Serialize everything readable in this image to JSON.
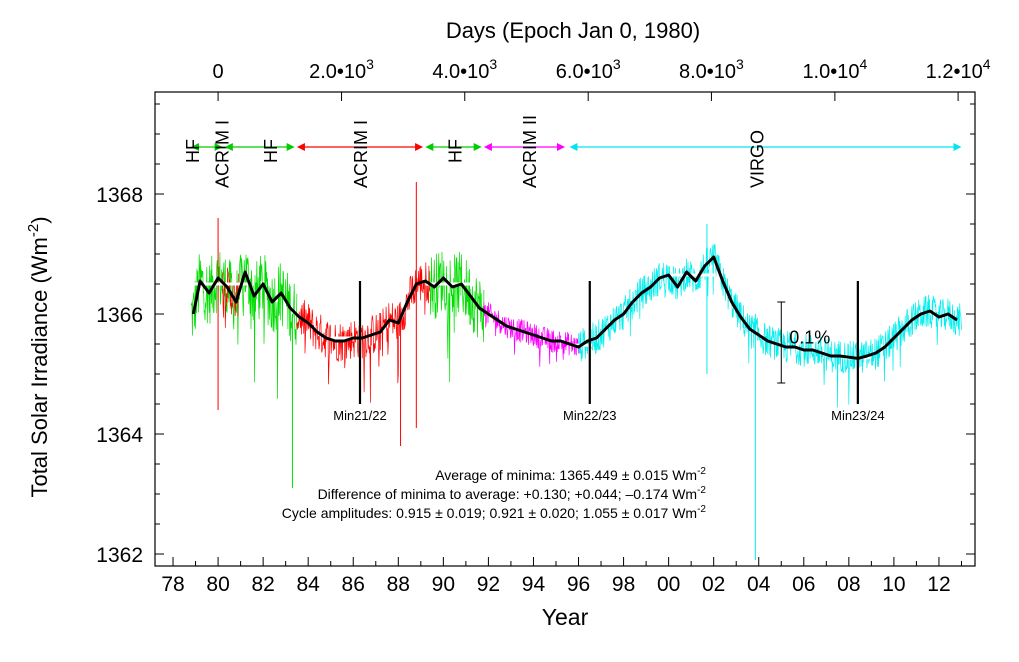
{
  "chart_data": {
    "type": "line",
    "xlabel": "Year",
    "ylabel": "Total Solar Irradiance (Wm",
    "ylabel_sup": "-2",
    "ylabel_close": ")",
    "top_axis_label": "Days (Epoch Jan 0, 1980)",
    "xlim": [
      1977.2,
      2013.6
    ],
    "ylim": [
      1361.8,
      1369.7
    ],
    "x_ticks": [
      {
        "year": 1978,
        "label": "78"
      },
      {
        "year": 1980,
        "label": "80"
      },
      {
        "year": 1982,
        "label": "82"
      },
      {
        "year": 1984,
        "label": "84"
      },
      {
        "year": 1986,
        "label": "86"
      },
      {
        "year": 1988,
        "label": "88"
      },
      {
        "year": 1990,
        "label": "90"
      },
      {
        "year": 1992,
        "label": "92"
      },
      {
        "year": 1994,
        "label": "94"
      },
      {
        "year": 1996,
        "label": "96"
      },
      {
        "year": 1998,
        "label": "98"
      },
      {
        "year": 2000,
        "label": "00"
      },
      {
        "year": 2002,
        "label": "02"
      },
      {
        "year": 2004,
        "label": "04"
      },
      {
        "year": 2006,
        "label": "06"
      },
      {
        "year": 2008,
        "label": "08"
      },
      {
        "year": 2010,
        "label": "10"
      },
      {
        "year": 2012,
        "label": "12"
      }
    ],
    "y_ticks": [
      1362,
      1364,
      1366,
      1368
    ],
    "top_ticks": [
      {
        "year": 1980.0,
        "label": "0",
        "mant": "",
        "exp": ""
      },
      {
        "year": 1985.48,
        "label": "2.0•",
        "mant": "10",
        "exp": "3"
      },
      {
        "year": 1990.95,
        "label": "4.0•",
        "mant": "10",
        "exp": "3"
      },
      {
        "year": 1996.43,
        "label": "6.0•",
        "mant": "10",
        "exp": "3"
      },
      {
        "year": 2001.9,
        "label": "8.0•",
        "mant": "10",
        "exp": "3"
      },
      {
        "year": 2007.38,
        "label": "1.0•",
        "mant": "10",
        "exp": "4"
      },
      {
        "year": 2012.85,
        "label": "1.2•",
        "mant": "10",
        "exp": "4"
      }
    ],
    "instruments": [
      {
        "name": "HF",
        "start": 1978.8,
        "end": 1980.2,
        "color": "#00cc00",
        "label_year": 1978.95,
        "vertical": true
      },
      {
        "name": "ACRIM I",
        "start": 1980.0,
        "end": 1980.2,
        "color": "#ff0000",
        "label_year": 1980.25,
        "vertical": true,
        "no_arrow": true
      },
      {
        "name": "HF",
        "start": 1980.3,
        "end": 1983.4,
        "color": "#00cc00",
        "label_year": 1982.4,
        "vertical": true
      },
      {
        "name": "ACRIM I",
        "start": 1983.5,
        "end": 1989.1,
        "color": "#ff0000",
        "label_year": 1986.4,
        "vertical": true
      },
      {
        "name": "HF",
        "start": 1989.2,
        "end": 1991.7,
        "color": "#00cc00",
        "label_year": 1990.6,
        "vertical": true
      },
      {
        "name": "ACRIM II",
        "start": 1991.8,
        "end": 1995.4,
        "color": "#ff00ff",
        "label_year": 1993.9,
        "vertical": true
      },
      {
        "name": "VIRGO",
        "start": 1995.6,
        "end": 2013.0,
        "color": "#00e5ee",
        "label_year": 2004.0,
        "vertical": true
      }
    ],
    "segments": [
      {
        "name": "HF",
        "start": 1978.8,
        "end": 1983.5,
        "color": "#00dd00"
      },
      {
        "name": "ACRIM I",
        "start": 1980.2,
        "end": 1980.9,
        "color": "#ff0000"
      },
      {
        "name": "ACRIM I",
        "start": 1983.5,
        "end": 1989.4,
        "color": "#ff0000"
      },
      {
        "name": "HF",
        "start": 1989.4,
        "end": 1991.8,
        "color": "#00dd00"
      },
      {
        "name": "ACRIM II",
        "start": 1991.8,
        "end": 1996.0,
        "color": "#ff00ff"
      },
      {
        "name": "VIRGO",
        "start": 1996.0,
        "end": 2013.0,
        "color": "#00eeee"
      }
    ],
    "composite_series": {
      "name": "",
      "color": "#000000",
      "x": [
        1978.9,
        1979.2,
        1979.6,
        1980.0,
        1980.4,
        1980.8,
        1981.2,
        1981.6,
        1982.0,
        1982.4,
        1982.8,
        1983.2,
        1983.6,
        1984.0,
        1984.4,
        1984.8,
        1985.2,
        1985.6,
        1986.0,
        1986.4,
        1986.8,
        1987.2,
        1987.6,
        1988.0,
        1988.4,
        1988.8,
        1989.2,
        1989.6,
        1990.0,
        1990.4,
        1990.8,
        1991.2,
        1991.6,
        1992.0,
        1992.4,
        1992.8,
        1993.2,
        1993.6,
        1994.0,
        1994.4,
        1994.8,
        1995.2,
        1995.6,
        1996.0,
        1996.4,
        1996.8,
        1997.2,
        1997.6,
        1998.0,
        1998.4,
        1998.8,
        1999.2,
        1999.6,
        2000.0,
        2000.4,
        2000.8,
        2001.2,
        2001.6,
        2002.0,
        2002.4,
        2002.8,
        2003.2,
        2003.6,
        2004.0,
        2004.4,
        2004.8,
        2005.2,
        2005.6,
        2006.0,
        2006.4,
        2006.8,
        2007.2,
        2007.6,
        2008.0,
        2008.4,
        2008.8,
        2009.2,
        2009.6,
        2010.0,
        2010.4,
        2010.8,
        2011.2,
        2011.6,
        2012.0,
        2012.4,
        2012.8
      ],
      "values": [
        1366.0,
        1366.55,
        1366.35,
        1366.6,
        1366.45,
        1366.2,
        1366.7,
        1366.3,
        1366.5,
        1366.2,
        1366.35,
        1366.1,
        1365.95,
        1365.85,
        1365.7,
        1365.6,
        1365.55,
        1365.55,
        1365.6,
        1365.6,
        1365.65,
        1365.7,
        1365.9,
        1365.85,
        1366.2,
        1366.5,
        1366.55,
        1366.45,
        1366.6,
        1366.45,
        1366.5,
        1366.3,
        1366.1,
        1366.0,
        1365.9,
        1365.8,
        1365.75,
        1365.7,
        1365.65,
        1365.6,
        1365.55,
        1365.55,
        1365.5,
        1365.45,
        1365.55,
        1365.6,
        1365.75,
        1365.9,
        1366.0,
        1366.2,
        1366.35,
        1366.45,
        1366.6,
        1366.65,
        1366.45,
        1366.7,
        1366.55,
        1366.8,
        1366.95,
        1366.55,
        1366.2,
        1365.95,
        1365.75,
        1365.65,
        1365.55,
        1365.5,
        1365.45,
        1365.45,
        1365.4,
        1365.4,
        1365.35,
        1365.3,
        1365.3,
        1365.28,
        1365.26,
        1365.3,
        1365.35,
        1365.45,
        1365.6,
        1365.75,
        1365.9,
        1366.0,
        1366.05,
        1365.95,
        1366.0,
        1365.9
      ]
    },
    "cycle_levels": [
      {
        "start": 1978.8,
        "end": 1981.4,
        "value": 1366.5
      },
      {
        "start": 1985.0,
        "end": 1986.2,
        "value": 1365.6
      },
      {
        "start": 1989.2,
        "end": 1991.3,
        "value": 1366.5
      },
      {
        "start": 1995.8,
        "end": 1996.6,
        "value": 1365.48
      },
      {
        "start": 2000.0,
        "end": 2002.1,
        "value": 1366.65
      },
      {
        "start": 2007.8,
        "end": 2009.0,
        "value": 1365.27
      }
    ],
    "minima_markers": [
      {
        "year": 1986.3,
        "top": 1366.55,
        "bottom": 1364.5,
        "label": "Min21/22",
        "label_value": 1364.3
      },
      {
        "year": 1996.5,
        "top": 1366.55,
        "bottom": 1364.5,
        "label": "Min22/23",
        "label_value": 1364.3
      },
      {
        "year": 2008.4,
        "top": 1366.55,
        "bottom": 1364.5,
        "label": "Min23/24",
        "label_value": 1364.3
      }
    ],
    "scale_bar": {
      "year": 2005.0,
      "bottom": 1364.85,
      "top": 1366.2,
      "label": "0.1%"
    },
    "spikes": [
      {
        "year": 1983.3,
        "low": 1363.1,
        "high": 1366.0,
        "color": "#00dd00"
      },
      {
        "year": 1988.1,
        "low": 1363.8,
        "high": 1366.0,
        "color": "#ff0000"
      },
      {
        "year": 1988.8,
        "low": 1364.1,
        "high": 1368.2,
        "color": "#ff0000"
      },
      {
        "year": 1980.0,
        "low": 1364.4,
        "high": 1367.6,
        "color": "#ff0000"
      },
      {
        "year": 2003.85,
        "low": 1361.9,
        "high": 1366.0,
        "color": "#00eeee"
      },
      {
        "year": 2001.7,
        "low": 1365.0,
        "high": 1367.5,
        "color": "#00eeee"
      }
    ],
    "annotations": [
      {
        "label": "Average of minima:",
        "text": "1365.449 ± 0.015 Wm",
        "sup": "-2"
      },
      {
        "label": "Difference of minima to average:",
        "text": "+0.130; +0.044; –0.174 Wm",
        "sup": "-2"
      },
      {
        "label": "Cycle amplitudes:",
        "text": "0.915 ± 0.019; 0.921 ± 0.020; 1.055 ± 0.017 Wm",
        "sup": "-2"
      }
    ]
  }
}
